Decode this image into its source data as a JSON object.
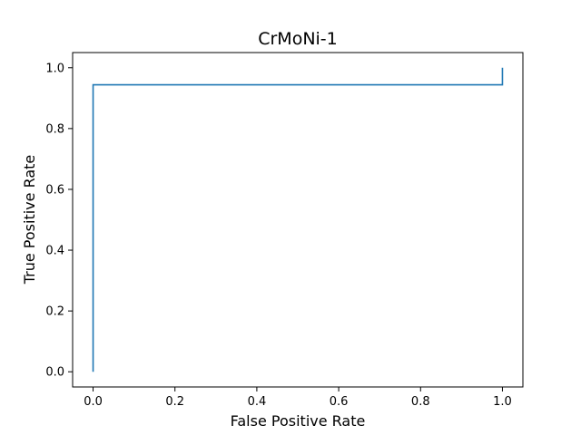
{
  "chart_data": {
    "type": "line",
    "title": "CrMoNi-1",
    "xlabel": "False Positive Rate",
    "ylabel": "True Positive Rate",
    "xlim": [
      -0.05,
      1.05
    ],
    "ylim": [
      -0.05,
      1.05
    ],
    "xticks": [
      "0.0",
      "0.2",
      "0.4",
      "0.6",
      "0.8",
      "1.0"
    ],
    "yticks": [
      "0.0",
      "0.2",
      "0.4",
      "0.6",
      "0.8",
      "1.0"
    ],
    "grid": false,
    "series": [
      {
        "color": "#1f77b4",
        "x": [
          0.0,
          0.0,
          1.0,
          1.0
        ],
        "y": [
          0.0,
          0.944,
          0.944,
          1.0
        ]
      }
    ]
  }
}
